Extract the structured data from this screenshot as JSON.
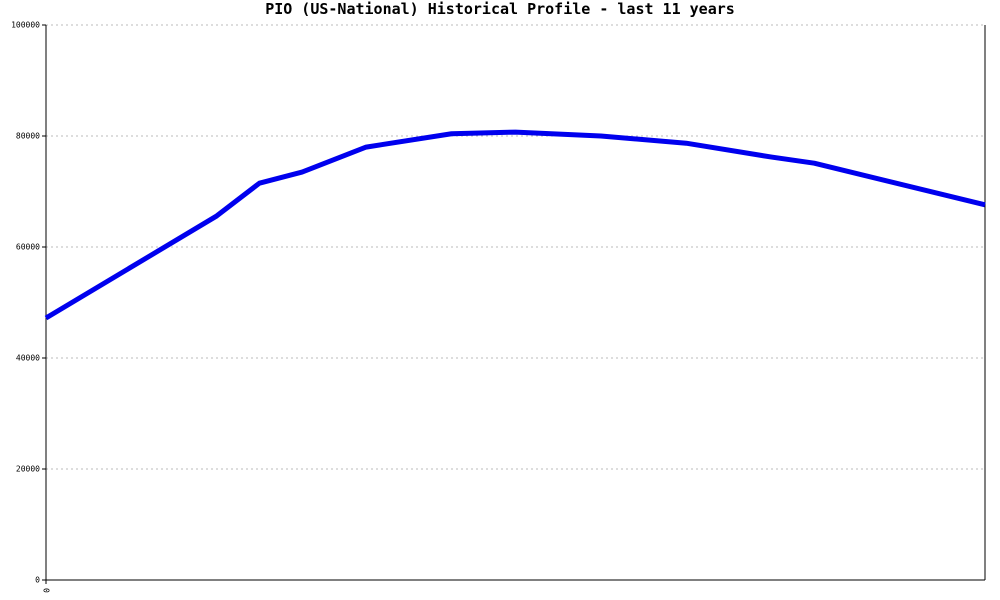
{
  "chart_data": {
    "type": "line",
    "title": "PIO (US-National) Historical Profile - last 11 years",
    "x": [
      0,
      2,
      2.5,
      3,
      3.75,
      4.75,
      5.5,
      6.5,
      7.5,
      8.5,
      9,
      11
    ],
    "values": [
      47200,
      65600,
      71500,
      73500,
      78000,
      80400,
      80700,
      80000,
      78700,
      76200,
      75100,
      67600
    ],
    "color": "#0000ee",
    "xlim": [
      0,
      11
    ],
    "xticks": [
      0
    ],
    "ylim": [
      0,
      100000
    ],
    "yticks": [
      0,
      20000,
      40000,
      60000,
      80000,
      100000
    ],
    "grid": true
  }
}
